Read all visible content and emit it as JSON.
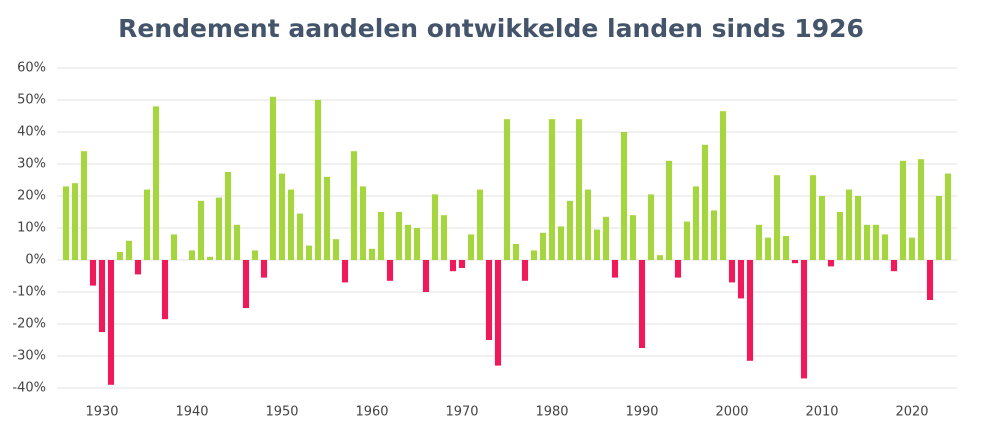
{
  "chart_data": {
    "type": "bar",
    "title": "Rendement aandelen ontwikkelde landen sinds 1926",
    "x": [
      1926,
      1927,
      1928,
      1929,
      1930,
      1931,
      1932,
      1933,
      1934,
      1935,
      1936,
      1937,
      1938,
      1939,
      1940,
      1941,
      1942,
      1943,
      1944,
      1945,
      1946,
      1947,
      1948,
      1949,
      1950,
      1951,
      1952,
      1953,
      1954,
      1955,
      1956,
      1957,
      1958,
      1959,
      1960,
      1961,
      1962,
      1963,
      1964,
      1965,
      1966,
      1967,
      1968,
      1969,
      1970,
      1971,
      1972,
      1973,
      1974,
      1975,
      1976,
      1977,
      1978,
      1979,
      1980,
      1981,
      1982,
      1983,
      1984,
      1985,
      1986,
      1987,
      1988,
      1989,
      1990,
      1991,
      1992,
      1993,
      1994,
      1995,
      1996,
      1997,
      1998,
      1999,
      2000,
      2001,
      2002,
      2003,
      2004,
      2005,
      2006,
      2007,
      2008,
      2009,
      2010,
      2011,
      2012,
      2013,
      2014,
      2015,
      2016,
      2017,
      2018,
      2019,
      2020,
      2021,
      2022,
      2023,
      2024
    ],
    "values": [
      23,
      24,
      34,
      -8,
      -22.5,
      -39,
      2.5,
      6,
      -4.5,
      22,
      48,
      -18.5,
      8,
      0,
      3,
      18.5,
      1,
      19.5,
      27.5,
      11,
      -15,
      3,
      -5.5,
      51,
      27,
      22,
      14.5,
      4.5,
      50,
      26,
      6.5,
      -7,
      34,
      23,
      3.5,
      15,
      -6.5,
      15,
      11,
      10,
      -10,
      20.5,
      14,
      -3.5,
      -2.5,
      8,
      22,
      -25,
      -33,
      44,
      5,
      -6.5,
      3,
      8.5,
      44,
      10.5,
      18.5,
      44,
      22,
      9.5,
      13.5,
      -5.5,
      40,
      14,
      -27.5,
      20.5,
      1.5,
      31,
      -5.5,
      12,
      23,
      36,
      15.5,
      46.5,
      -7,
      -12,
      -31.5,
      11,
      7,
      26.5,
      7.5,
      -1,
      -37,
      26.5,
      20,
      -2,
      15,
      22,
      20,
      11,
      11,
      8,
      -3.5,
      31,
      7,
      31.5,
      -12.5,
      20,
      27
    ],
    "positive_color": "#a5d63f",
    "negative_color": "#f0195a",
    "xlim": [
      1925,
      2025
    ],
    "xticks": [
      1930,
      1940,
      1950,
      1960,
      1970,
      1980,
      1990,
      2000,
      2010,
      2020
    ],
    "ylim": [
      -40,
      60
    ],
    "yticks": [
      {
        "value": -40,
        "label": "-40%"
      },
      {
        "value": -30,
        "label": "-30%"
      },
      {
        "value": -20,
        "label": "-20%"
      },
      {
        "value": -10,
        "label": "-10%"
      },
      {
        "value": 0,
        "label": "0%"
      },
      {
        "value": 10,
        "label": "10%"
      },
      {
        "value": 20,
        "label": "20%"
      },
      {
        "value": 30,
        "label": "30%"
      },
      {
        "value": 40,
        "label": "40%"
      },
      {
        "value": 50,
        "label": "50%"
      },
      {
        "value": 60,
        "label": "60%"
      }
    ],
    "grid": true
  }
}
